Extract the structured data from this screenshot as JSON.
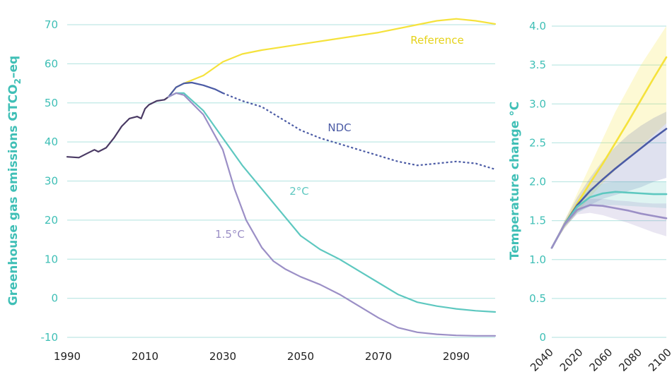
{
  "chart_data": [
    {
      "type": "line",
      "title": "",
      "ylabel": "Greenhouse gas emissions GTCO₂–eq",
      "ylabel_main": "Greenhouse gas emissions GTCO",
      "ylabel_sub": "2",
      "ylabel_tail": "–eq",
      "xlabel": "",
      "xlim": [
        1990,
        2100
      ],
      "ylim": [
        -10,
        70
      ],
      "xticks": [
        1990,
        2010,
        2030,
        2050,
        2070,
        2090
      ],
      "yticks": [
        70,
        60,
        50,
        40,
        30,
        20,
        10,
        0,
        -10
      ],
      "grid": true,
      "colors": {
        "historical": "#4a3a64",
        "reference": "#f5e23c",
        "ndc": "#4b5ba5",
        "two_deg": "#5ec8c0",
        "one_five": "#9b8fc6",
        "axis_text": "#3fbfb6",
        "grid": "#bfe8e5"
      },
      "series": [
        {
          "key": "historical",
          "x": [
            1990,
            1993,
            1995,
            1997,
            1998,
            2000,
            2002,
            2004,
            2006,
            2008,
            2009,
            2010,
            2011,
            2013,
            2015,
            2016
          ],
          "y": [
            36.2,
            36,
            37,
            38,
            37.5,
            38.5,
            41,
            44,
            46,
            46.5,
            46,
            48.5,
            49.5,
            50.5,
            50.8,
            51.5
          ]
        },
        {
          "key": "reference",
          "name": "Reference",
          "x": [
            2016,
            2018,
            2020,
            2025,
            2030,
            2035,
            2040,
            2050,
            2060,
            2070,
            2080,
            2085,
            2090,
            2095,
            2100
          ],
          "y": [
            51.5,
            54,
            55,
            57,
            60.5,
            62.5,
            63.5,
            65,
            66.5,
            68,
            70,
            71,
            71.5,
            71,
            70.2
          ]
        },
        {
          "key": "ndc",
          "name": "NDC",
          "x": [
            2016,
            2018,
            2020,
            2022,
            2025,
            2028,
            2030
          ],
          "y": [
            51.5,
            54,
            55,
            55.2,
            54.5,
            53.5,
            52.5
          ]
        },
        {
          "key": "ndc_projection",
          "name": "NDC",
          "dashed": true,
          "x": [
            2030,
            2035,
            2040,
            2045,
            2050,
            2055,
            2060,
            2065,
            2070,
            2075,
            2080,
            2085,
            2090,
            2095,
            2100
          ],
          "y": [
            52.5,
            50.5,
            49,
            46,
            43,
            41,
            39.5,
            38,
            36.5,
            35,
            34,
            34.5,
            35,
            34.5,
            33
          ]
        },
        {
          "key": "two_deg",
          "name": "2°C",
          "x": [
            2016,
            2018,
            2020,
            2025,
            2030,
            2035,
            2040,
            2045,
            2050,
            2055,
            2060,
            2065,
            2070,
            2075,
            2080,
            2085,
            2090,
            2095,
            2100
          ],
          "y": [
            51.5,
            52.5,
            52.5,
            48,
            41,
            34,
            28,
            22,
            16,
            12.5,
            10,
            7,
            4,
            1,
            -1,
            -2,
            -2.7,
            -3.2,
            -3.5
          ]
        },
        {
          "key": "one_five",
          "name": "1.5°C",
          "x": [
            2016,
            2018,
            2020,
            2025,
            2030,
            2033,
            2036,
            2040,
            2043,
            2046,
            2050,
            2055,
            2060,
            2065,
            2070,
            2075,
            2080,
            2085,
            2090,
            2095,
            2100
          ],
          "y": [
            51.5,
            52.5,
            52,
            47,
            38,
            28,
            20,
            13,
            9.5,
            7.5,
            5.5,
            3.5,
            1,
            -2,
            -5,
            -7.5,
            -8.7,
            -9.2,
            -9.5,
            -9.6,
            -9.6
          ]
        }
      ],
      "annotations": [
        {
          "text": "Reference",
          "series": "reference"
        },
        {
          "text": "NDC",
          "series": "ndc"
        },
        {
          "text": "2°C",
          "series": "two_deg"
        },
        {
          "text": "1.5°C",
          "series": "one_five"
        }
      ]
    },
    {
      "type": "line",
      "title": "",
      "ylabel": "Temperature change °C",
      "xlabel": "",
      "xlim": [
        2010,
        2100
      ],
      "ylim": [
        0,
        4.0
      ],
      "xticks": [
        "2040",
        "2020",
        "2060",
        "2080",
        "2100"
      ],
      "yticks": [
        "4.0",
        "3.5",
        "3.0",
        "2.5",
        "2.0",
        "1.5",
        "1.0",
        "0.5",
        "0"
      ],
      "grid": true,
      "series": [
        {
          "key": "reference",
          "x": [
            2010,
            2020,
            2030,
            2040,
            2050,
            2060,
            2070,
            2080,
            2090,
            2100
          ],
          "y": [
            1.15,
            1.45,
            1.72,
            1.98,
            2.23,
            2.5,
            2.77,
            3.05,
            3.33,
            3.6
          ],
          "band_low": [
            1.15,
            1.4,
            1.6,
            1.8,
            1.98,
            2.15,
            2.3,
            2.45,
            2.6,
            2.75
          ],
          "band_high": [
            1.15,
            1.5,
            1.85,
            2.2,
            2.55,
            2.9,
            3.2,
            3.5,
            3.75,
            4.0
          ]
        },
        {
          "key": "ndc",
          "x": [
            2010,
            2020,
            2030,
            2040,
            2050,
            2060,
            2070,
            2080,
            2090,
            2100
          ],
          "y": [
            1.15,
            1.45,
            1.7,
            1.88,
            2.03,
            2.17,
            2.3,
            2.43,
            2.56,
            2.68
          ],
          "band_low": [
            1.15,
            1.4,
            1.6,
            1.7,
            1.78,
            1.83,
            1.88,
            1.93,
            2.0,
            2.05
          ],
          "band_high": [
            1.15,
            1.5,
            1.8,
            2.05,
            2.27,
            2.45,
            2.6,
            2.72,
            2.82,
            2.9
          ]
        },
        {
          "key": "two_deg",
          "x": [
            2010,
            2020,
            2030,
            2040,
            2050,
            2060,
            2070,
            2080,
            2090,
            2100
          ],
          "y": [
            1.15,
            1.45,
            1.68,
            1.8,
            1.85,
            1.87,
            1.86,
            1.85,
            1.84,
            1.84
          ],
          "band_low": [
            1.15,
            1.42,
            1.6,
            1.68,
            1.7,
            1.7,
            1.69,
            1.68,
            1.67,
            1.66
          ],
          "band_high": [
            1.15,
            1.48,
            1.75,
            1.92,
            1.98,
            2.0,
            2.0,
            2.0,
            2.0,
            2.0
          ]
        },
        {
          "key": "one_five",
          "x": [
            2010,
            2020,
            2030,
            2040,
            2050,
            2060,
            2070,
            2080,
            2090,
            2100
          ],
          "y": [
            1.15,
            1.45,
            1.64,
            1.7,
            1.69,
            1.66,
            1.63,
            1.59,
            1.56,
            1.53
          ],
          "band_low": [
            1.15,
            1.42,
            1.58,
            1.6,
            1.57,
            1.52,
            1.47,
            1.41,
            1.35,
            1.3
          ],
          "band_high": [
            1.15,
            1.48,
            1.7,
            1.78,
            1.78,
            1.76,
            1.75,
            1.73,
            1.72,
            1.72
          ]
        }
      ]
    }
  ]
}
